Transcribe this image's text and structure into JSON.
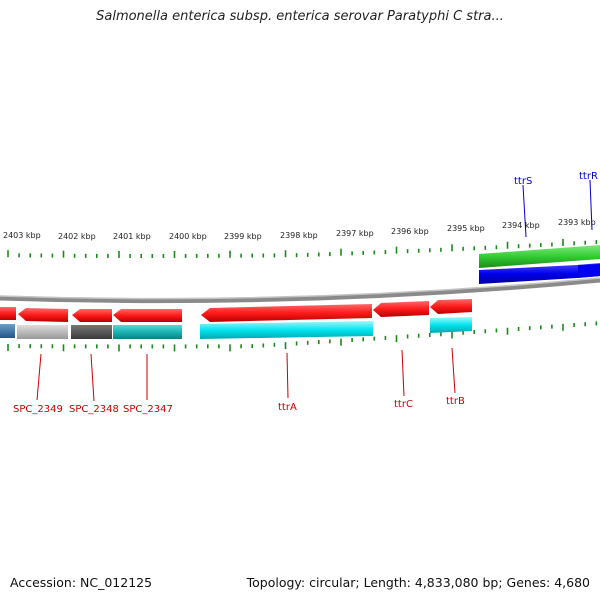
{
  "title": "Salmonella enterica subsp. enterica serovar Paratyphi C stra...",
  "scale_labels": [
    "2403 kbp",
    "2402 kbp",
    "2401 kbp",
    "2400 kbp",
    "2399 kbp",
    "2398 kbp",
    "2397 kbp",
    "2396 kbp",
    "2395 kbp",
    "2394 kbp",
    "2393 kbp"
  ],
  "genes_lower": [
    "SPC_2349",
    "SPC_2348",
    "SPC_2347",
    "ttrA",
    "ttrC",
    "ttrB"
  ],
  "genes_upper": [
    "ttrS",
    "ttrR"
  ],
  "colors": {
    "gene_red": "#ff1a1a",
    "gene_green": "#33cc33",
    "gene_blue": "#0000ee",
    "cyan": "#00e5ee",
    "teal": "#19b4b4",
    "gray_light": "#bbbbbb",
    "gray_dark": "#555555",
    "steel_blue": "#3377aa",
    "backbone": "#888888",
    "tick_green": "#1a8a1a"
  },
  "footer": {
    "accession": "Accession: NC_012125",
    "summary": "Topology: circular; Length: 4,833,080 bp; Genes: 4,680"
  }
}
